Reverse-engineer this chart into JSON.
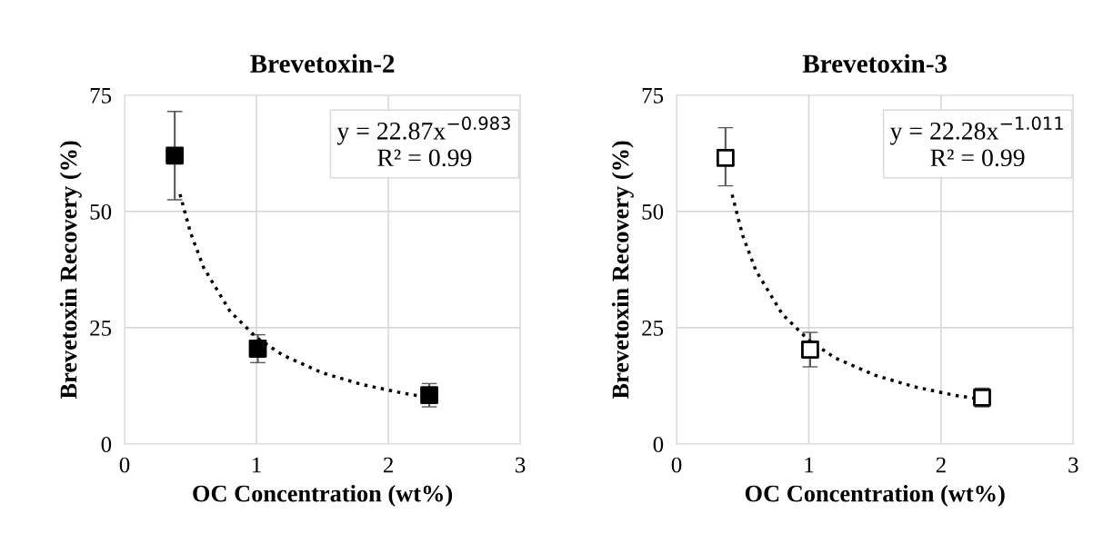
{
  "chart_data": [
    {
      "type": "scatter",
      "title": "Brevetoxin-2",
      "xlabel": "OC Concentration (wt%)",
      "ylabel": "Brevetoxin Recovery (%)",
      "xlim": [
        0,
        3
      ],
      "xticks": [
        0,
        1,
        2,
        3
      ],
      "ylim": [
        0,
        75
      ],
      "yticks": [
        0,
        25,
        50,
        75
      ],
      "grid": true,
      "annotations": [
        "y = 22.87x$^{−0.983}$\nR² = 0.99"
      ],
      "series": [
        {
          "marker": "square",
          "color": "#000000",
          "x": [
            0.38,
            1.01,
            2.31
          ],
          "values": [
            62,
            20.5,
            10.5
          ],
          "errors": [
            9.5,
            3,
            2.5
          ]
        },
        {
          "type": "line",
          "marker": "none",
          "line_style": "dotted",
          "color": "#000000",
          "x": [
            0.42,
            0.5,
            0.6,
            0.8,
            1.0,
            1.2,
            1.5,
            1.8,
            2.1,
            2.31
          ],
          "values": [
            53.7,
            45.4,
            37.9,
            28.5,
            22.9,
            19.1,
            15.3,
            12.8,
            11.0,
            10.0
          ]
        }
      ]
    },
    {
      "type": "scatter",
      "title": "Brevetoxin-3",
      "xlabel": "OC Concentration (wt%)",
      "ylabel": "Brevetoxin Recovery (%)",
      "xlim": [
        0,
        3
      ],
      "xticks": [
        0,
        1,
        2,
        3
      ],
      "ylim": [
        0,
        75
      ],
      "yticks": [
        0,
        25,
        50,
        75
      ],
      "grid": true,
      "annotations": [
        "y = 22.28x$^{−1.011}$\nR² = 0.99"
      ],
      "series": [
        {
          "marker": "square",
          "color": "#ffffff",
          "x": [
            0.37,
            1.01,
            2.31
          ],
          "values": [
            61.5,
            20.3,
            10
          ],
          "errors": [
            [
              55.5,
              68
            ],
            [
              16.6,
              24
            ],
            [
              8,
              12
            ]
          ]
        },
        {
          "type": "line",
          "marker": "none",
          "line_style": "dotted",
          "color": "#000000",
          "x": [
            0.42,
            0.5,
            0.6,
            0.8,
            1.0,
            1.2,
            1.5,
            1.8,
            2.1,
            2.31
          ],
          "values": [
            53.6,
            44.8,
            37.3,
            27.9,
            22.3,
            18.5,
            14.8,
            12.3,
            10.5,
            9.6
          ]
        }
      ]
    }
  ]
}
